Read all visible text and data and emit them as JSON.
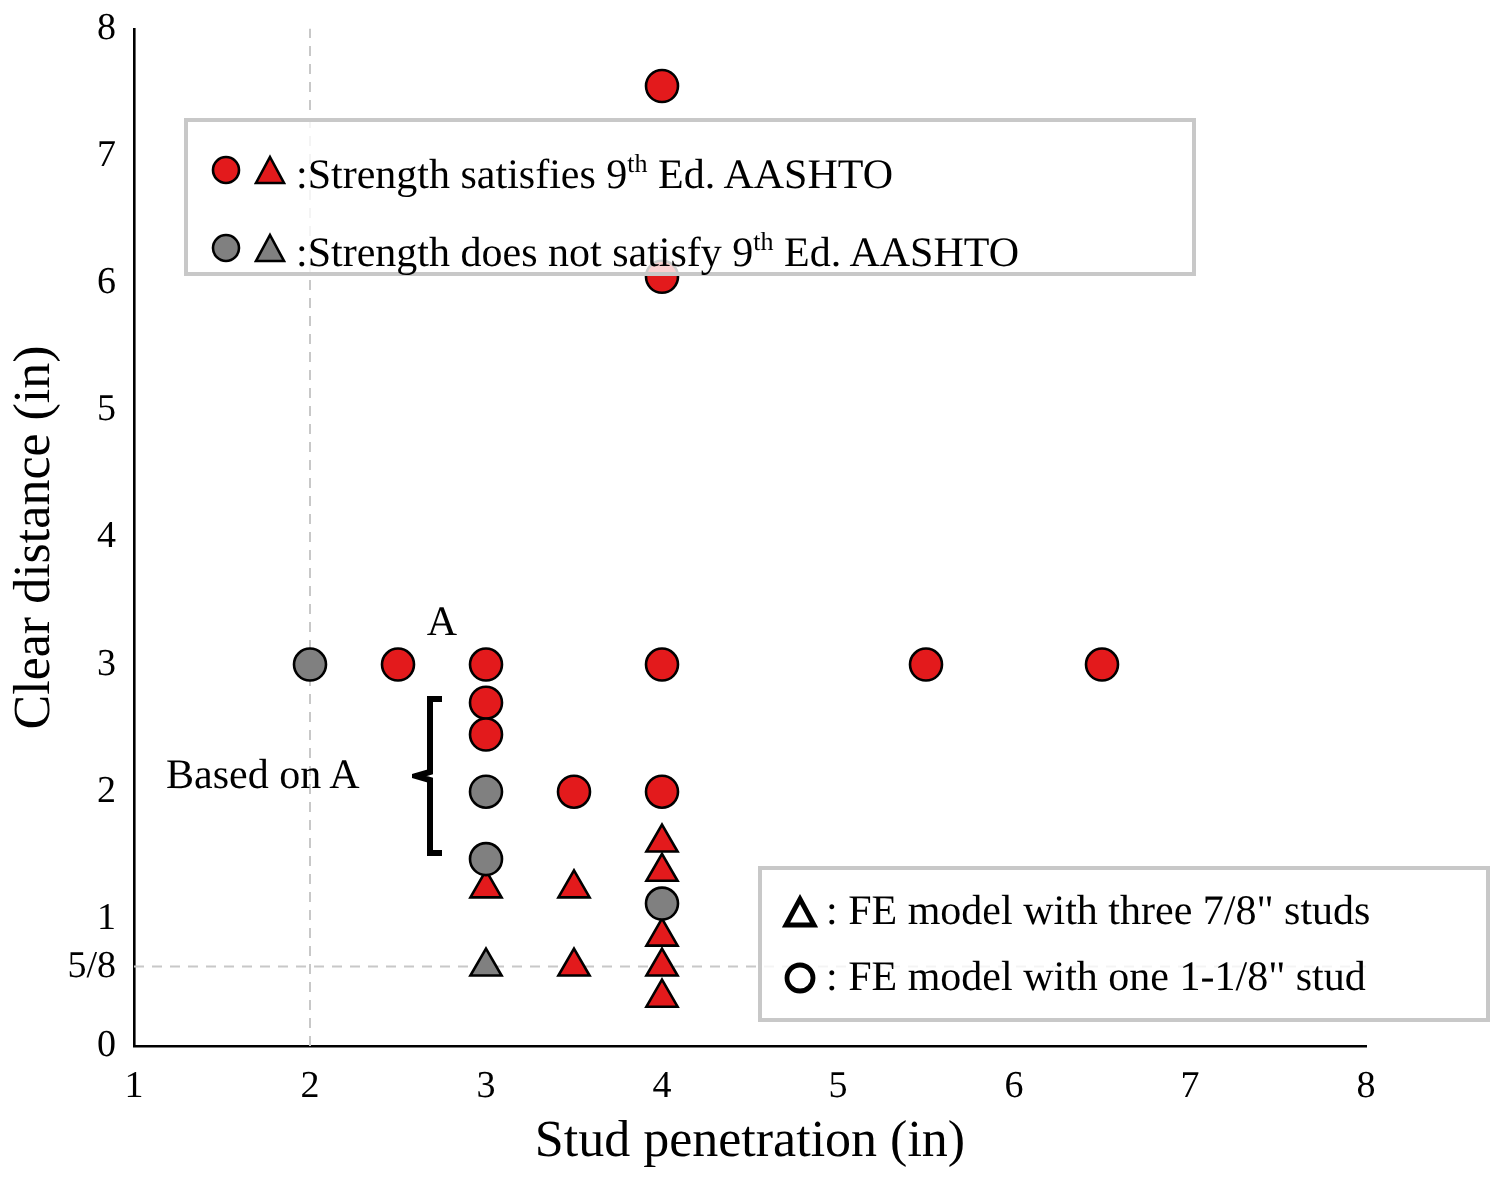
{
  "chart_data": {
    "type": "scatter",
    "xlabel": "Stud penetration (in)",
    "ylabel": "Clear distance (in)",
    "xlim": [
      1,
      8
    ],
    "xticks": [
      1,
      2,
      3,
      4,
      5,
      6,
      7,
      8
    ],
    "ylim": [
      0,
      8
    ],
    "yticks": [
      0,
      {
        "value": 0.625,
        "label": "5/8"
      },
      1,
      2,
      3,
      4,
      5,
      6,
      7,
      8
    ],
    "grid": false,
    "legend": false,
    "series": [
      {
        "color": "#e31a1c",
        "marker": "circle",
        "x": [
          4,
          4,
          2.5,
          3,
          4,
          5.5,
          6.5,
          3,
          3,
          3.5,
          4
        ],
        "values": [
          7.55,
          6.05,
          3,
          3,
          3,
          3,
          3,
          2.7,
          2.45,
          2,
          2
        ]
      },
      {
        "color": "#808080",
        "marker": "circle",
        "x": [
          2,
          3,
          3,
          4
        ],
        "values": [
          3,
          2,
          1.47,
          1.12
        ]
      },
      {
        "color": "#e31a1c",
        "marker": "triangle",
        "x": [
          4,
          4,
          3,
          3.5,
          4,
          3.5,
          4,
          4
        ],
        "values": [
          1.6,
          1.37,
          1.24,
          1.24,
          0.86,
          0.625,
          0.625,
          0.38
        ]
      },
      {
        "color": "#808080",
        "marker": "triangle",
        "x": [
          3
        ],
        "values": [
          0.625
        ]
      }
    ],
    "ref_lines": [
      {
        "axis": "x",
        "value": 2,
        "color": "#c8c8c8",
        "line_style": "dashed"
      },
      {
        "axis": "y",
        "value": 0.625,
        "color": "#c8c8c8",
        "line_style": "dashed"
      }
    ],
    "annotations": [
      {
        "text": "A",
        "x": 3,
        "y": 3
      },
      "Based on A",
      ":Strength satisfies 9$^{th}$ Ed. AASHTO",
      ":Strength does not satisfy 9$^{th}$ Ed. AASHTO",
      ": FE model with three 7/8\" studs",
      ": FE model with one 1-1/8\" stud"
    ]
  }
}
